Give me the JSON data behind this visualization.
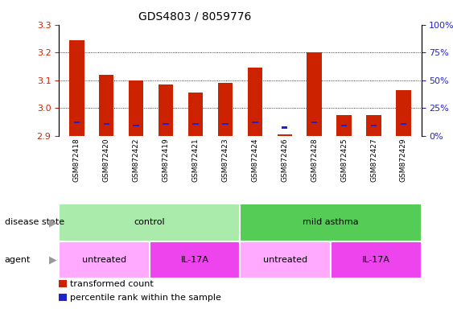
{
  "title": "GDS4803 / 8059776",
  "samples": [
    "GSM872418",
    "GSM872420",
    "GSM872422",
    "GSM872419",
    "GSM872421",
    "GSM872423",
    "GSM872424",
    "GSM872426",
    "GSM872428",
    "GSM872425",
    "GSM872427",
    "GSM872429"
  ],
  "red_values": [
    3.245,
    3.12,
    3.1,
    3.085,
    3.055,
    3.09,
    3.145,
    2.905,
    3.2,
    2.975,
    2.975,
    3.065
  ],
  "blue_values": [
    2.945,
    2.94,
    2.935,
    2.94,
    2.94,
    2.94,
    2.945,
    2.926,
    2.945,
    2.935,
    2.935,
    2.94
  ],
  "blue_heights": [
    0.006,
    0.006,
    0.006,
    0.006,
    0.006,
    0.006,
    0.006,
    0.01,
    0.006,
    0.006,
    0.006,
    0.006
  ],
  "ylim_left": [
    2.9,
    3.3
  ],
  "yticks_left": [
    2.9,
    3.0,
    3.1,
    3.2,
    3.3
  ],
  "yticks_right": [
    0,
    25,
    50,
    75,
    100
  ],
  "ytick_labels_right": [
    "0%",
    "25%",
    "50%",
    "75%",
    "100%"
  ],
  "bar_bottom": 2.9,
  "disease_state_groups": [
    {
      "label": "control",
      "start": 0,
      "end": 6,
      "color": "#AAEAAA"
    },
    {
      "label": "mild asthma",
      "start": 6,
      "end": 12,
      "color": "#55CC55"
    }
  ],
  "agent_groups": [
    {
      "label": "untreated",
      "start": 0,
      "end": 3,
      "color": "#FFAAFF"
    },
    {
      "label": "IL-17A",
      "start": 3,
      "end": 6,
      "color": "#EE44EE"
    },
    {
      "label": "untreated",
      "start": 6,
      "end": 9,
      "color": "#FFAAFF"
    },
    {
      "label": "IL-17A",
      "start": 9,
      "end": 12,
      "color": "#EE44EE"
    }
  ],
  "bar_width": 0.5,
  "red_color": "#CC2200",
  "blue_color": "#2222CC",
  "grid_color": "#000000",
  "tick_label_color_left": "#CC2200",
  "tick_label_color_right": "#2222CC",
  "xtick_bg_color": "#DDDDDD",
  "legend_items": [
    {
      "label": "transformed count",
      "color": "#CC2200"
    },
    {
      "label": "percentile rank within the sample",
      "color": "#2222CC"
    }
  ],
  "disease_state_label": "disease state",
  "agent_label": "agent"
}
